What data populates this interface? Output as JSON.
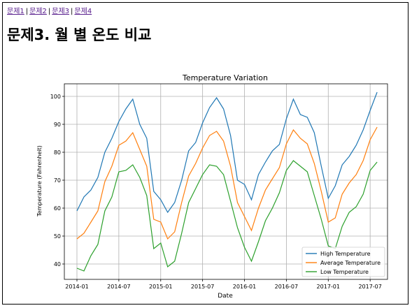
{
  "nav": {
    "links": [
      "문제1",
      "문제2",
      "문제3",
      "문제4"
    ],
    "separator": "|"
  },
  "page_title": "문제3. 월 별 온도 비교",
  "chart_data": {
    "type": "line",
    "title": "Temperature Variation",
    "xlabel": "Date",
    "ylabel": "Temperature (Fahrenheit)",
    "x": [
      "2014-01",
      "2014-02",
      "2014-03",
      "2014-04",
      "2014-05",
      "2014-06",
      "2014-07",
      "2014-08",
      "2014-09",
      "2014-10",
      "2014-11",
      "2014-12",
      "2015-01",
      "2015-02",
      "2015-03",
      "2015-04",
      "2015-05",
      "2015-06",
      "2015-07",
      "2015-08",
      "2015-09",
      "2015-10",
      "2015-11",
      "2015-12",
      "2016-01",
      "2016-02",
      "2016-03",
      "2016-04",
      "2016-05",
      "2016-06",
      "2016-07",
      "2016-08",
      "2016-09",
      "2016-10",
      "2016-11",
      "2016-12",
      "2017-01",
      "2017-02",
      "2017-03",
      "2017-04",
      "2017-05",
      "2017-06",
      "2017-07",
      "2017-08"
    ],
    "x_ticks": [
      "2014-01",
      "2014-07",
      "2015-01",
      "2015-07",
      "2016-01",
      "2016-07",
      "2017-01",
      "2017-07"
    ],
    "ylim": [
      34.5,
      104.5
    ],
    "y_ticks": [
      40,
      50,
      60,
      70,
      80,
      90,
      100
    ],
    "grid": true,
    "legend_position": "lower-right",
    "series": [
      {
        "name": "High Temperature",
        "color": "#1f77b4",
        "values": [
          59,
          64,
          66.5,
          71,
          80,
          85,
          91,
          95.5,
          99,
          90,
          85,
          66,
          63,
          58.5,
          62,
          70,
          80.5,
          83.5,
          90.5,
          96,
          99.5,
          95.5,
          86,
          70,
          68.5,
          63,
          72,
          76.5,
          80.5,
          82.8,
          92,
          99,
          93.5,
          92.5,
          87,
          75,
          63.5,
          68,
          75.5,
          78.5,
          82.5,
          88,
          95,
          101.5
        ]
      },
      {
        "name": "Average Temperature",
        "color": "#ff7f0e",
        "values": [
          49,
          51,
          55,
          59,
          69.5,
          75,
          82.5,
          84,
          87,
          81,
          75,
          56,
          55,
          49,
          51.5,
          62,
          71.5,
          76,
          81.5,
          86,
          87.5,
          84,
          75,
          62,
          57,
          52,
          60,
          66.5,
          70.5,
          74.5,
          83,
          88,
          85,
          83,
          76,
          66,
          55,
          56.5,
          65,
          69,
          72,
          77,
          84.5,
          89
        ]
      },
      {
        "name": "Low Temperature",
        "color": "#2ca02c",
        "values": [
          38.5,
          37.5,
          43,
          47,
          59,
          64,
          73,
          73.5,
          75.5,
          71,
          64.5,
          45.5,
          47.5,
          39,
          41,
          51,
          62,
          67,
          72,
          75.5,
          75,
          72,
          62.5,
          53,
          46,
          41,
          48,
          55.5,
          60,
          65.5,
          73.5,
          77,
          75,
          73,
          64.5,
          56,
          46.5,
          45.5,
          53.5,
          58.5,
          60.5,
          65,
          73.5,
          76.5
        ]
      }
    ]
  }
}
